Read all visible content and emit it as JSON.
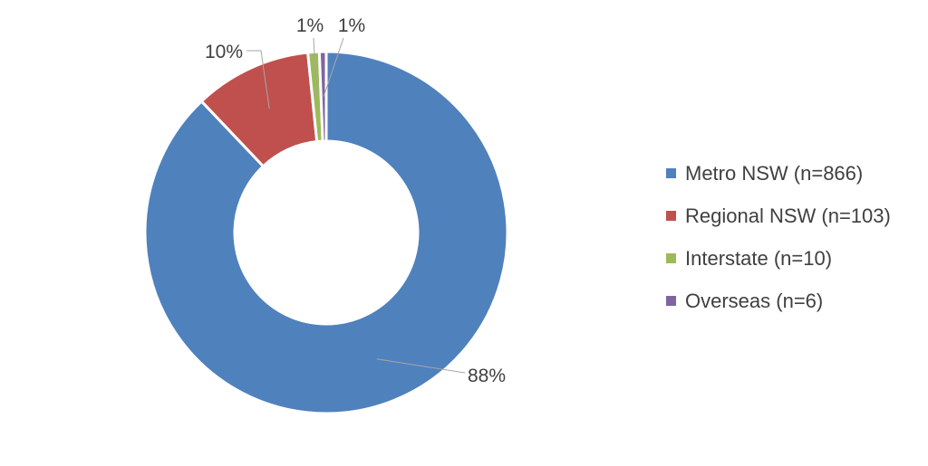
{
  "chart_data": {
    "type": "pie",
    "variant": "doughnut",
    "series": [
      {
        "name": "Metro NSW (n=866)",
        "value": 866,
        "label": "88%",
        "color": "#4F81BD"
      },
      {
        "name": "Regional NSW (n=103)",
        "value": 103,
        "label": "10%",
        "color": "#C0504D"
      },
      {
        "name": "Interstate (n=10)",
        "value": 10,
        "label": "1%",
        "color": "#9BBB59"
      },
      {
        "name": "Overseas (n=6)",
        "value": 6,
        "label": "1%",
        "color": "#8064A2"
      }
    ],
    "legend_position": "right"
  }
}
